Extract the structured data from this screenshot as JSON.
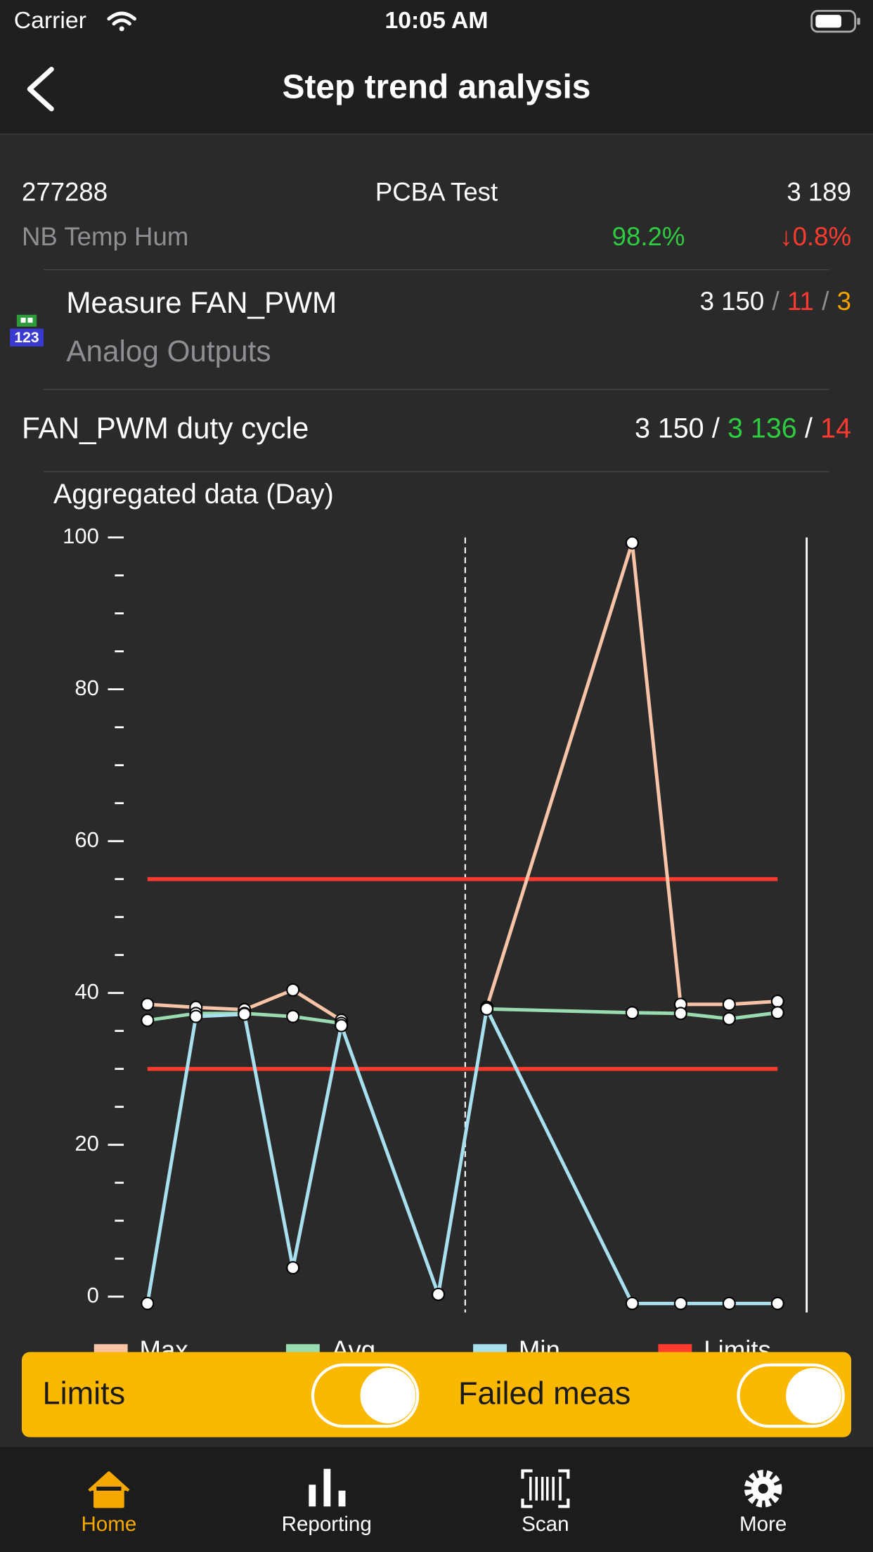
{
  "status_bar": {
    "carrier": "Carrier",
    "time": "10:05 AM"
  },
  "nav": {
    "title": "Step trend analysis"
  },
  "summary": {
    "id": "277288",
    "name": "PCBA Test",
    "count": "3 189",
    "station": "NB Temp Hum",
    "yield": "98.2%",
    "change": "↓0.8%"
  },
  "separator": "/",
  "step": {
    "title": "Measure FAN_PWM",
    "group": "Analog Outputs",
    "icon_text": "123",
    "counts": [
      "3 150",
      "11",
      "3"
    ]
  },
  "measurement": {
    "name": "FAN_PWM duty cycle",
    "counts": [
      "3 150",
      "3 136",
      "14"
    ]
  },
  "chart_data": {
    "type": "line",
    "title": "Aggregated data (Day)",
    "x": [
      0,
      1,
      2,
      3,
      4,
      6,
      7,
      10,
      11,
      12,
      13
    ],
    "xlim": [
      0,
      13.6
    ],
    "series": [
      {
        "name": "Max",
        "color": "#f8c4a8",
        "values": [
          38.5,
          38.1,
          37.8,
          40.4,
          36.4,
          null,
          38.1,
          99.3,
          38.5,
          38.5,
          38.9
        ]
      },
      {
        "name": "Avg",
        "color": "#98dcb0",
        "values": [
          36.4,
          37.3,
          37.3,
          36.9,
          36.0,
          null,
          37.9,
          37.4,
          37.3,
          36.6,
          37.4
        ]
      },
      {
        "name": "Min",
        "color": "#a8e0f0",
        "values": [
          -0.9,
          36.9,
          37.2,
          3.8,
          35.7,
          0.3,
          37.9,
          -0.9,
          -0.9,
          -0.9,
          -0.9
        ]
      }
    ],
    "limits": {
      "name": "Limits",
      "color": "#ff3b30",
      "values": [
        55,
        30
      ]
    },
    "ylim": [
      0,
      100
    ],
    "yticks": [
      0,
      20,
      40,
      60,
      80,
      100
    ],
    "yminor_ticks": [
      5,
      10,
      15,
      25,
      30,
      35,
      45,
      50,
      55,
      65,
      70,
      75,
      85,
      90,
      95
    ]
  },
  "toggles": [
    {
      "label": "Limits",
      "on": true
    },
    {
      "label": "Failed meas",
      "on": true
    }
  ],
  "tabs": [
    {
      "label": "Home",
      "active": true
    },
    {
      "label": "Reporting",
      "active": false
    },
    {
      "label": "Scan",
      "active": false
    },
    {
      "label": "More",
      "active": false
    }
  ]
}
